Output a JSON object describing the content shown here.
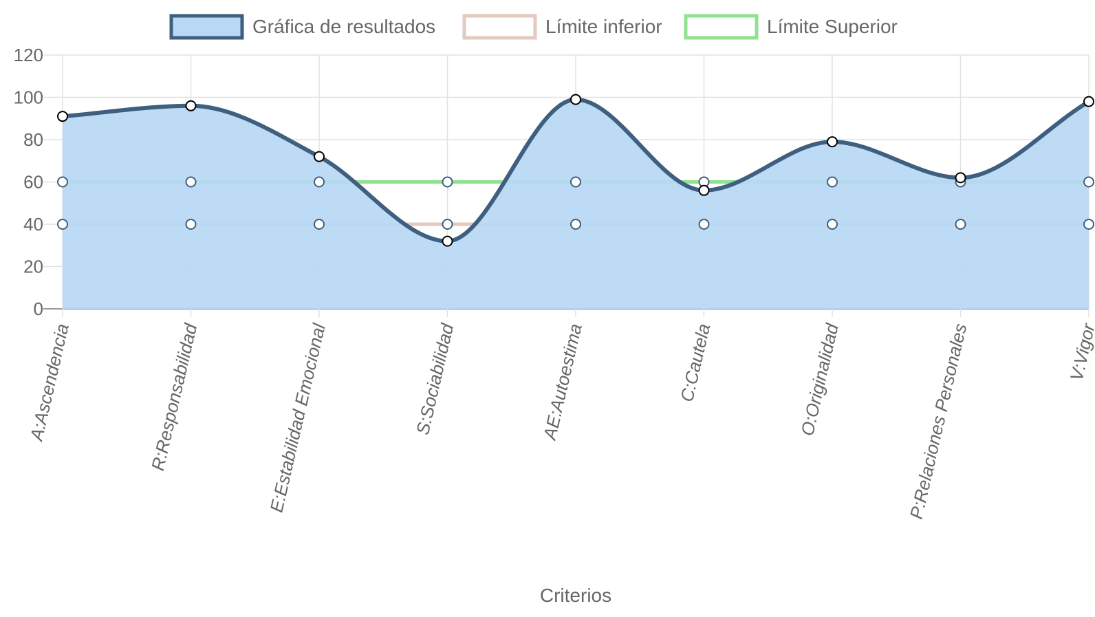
{
  "chart_data": {
    "type": "line",
    "categories": [
      "A:Ascendencia",
      "R:Responsabilidad",
      "E:Estabilidad Emocional",
      "S:Sociabilidad",
      "AE:Autoestima",
      "C:Cautela",
      "O:Originalidad",
      "P:Relaciones Personales",
      "V:Vigor"
    ],
    "series": [
      {
        "name": "Gráfica de resultados",
        "values": [
          91,
          96,
          72,
          32,
          99,
          56,
          79,
          62,
          98
        ],
        "color": "#3e5f7f",
        "fill": "#b8d8f5",
        "area": true
      },
      {
        "name": "Límite inferior",
        "values": [
          40,
          40,
          40,
          40,
          40,
          40,
          40,
          40,
          40
        ],
        "color": "#e3c9bf",
        "area": false
      },
      {
        "name": "Límite Superior",
        "values": [
          60,
          60,
          60,
          60,
          60,
          60,
          60,
          60,
          60
        ],
        "color": "#90e28f",
        "area": false
      }
    ],
    "xlabel": "Criterios",
    "ylabel": "",
    "ylim": [
      0,
      120
    ],
    "yticks": [
      "0",
      "20",
      "40",
      "60",
      "80",
      "100",
      "120"
    ],
    "grid": true,
    "legend_position": "top"
  }
}
